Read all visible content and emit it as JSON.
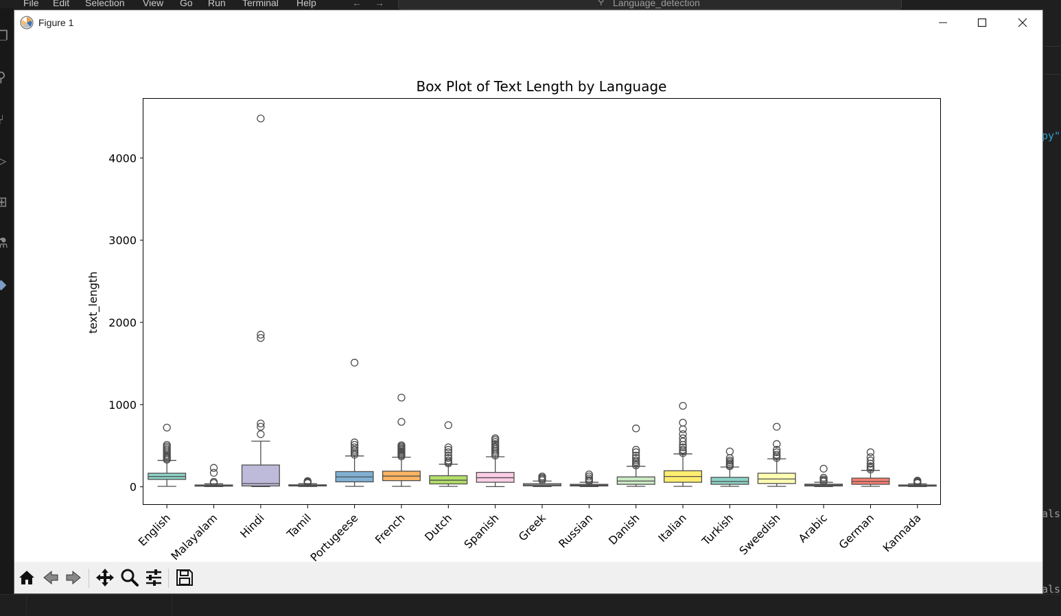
{
  "vscode": {
    "menu": [
      "File",
      "Edit",
      "Selection",
      "View",
      "Go",
      "Run",
      "Terminal",
      "Help"
    ],
    "search_text": "Language_detection",
    "right_fragments": [
      "py\"",
      "als",
      "als"
    ]
  },
  "window": {
    "title": "Figure 1",
    "controls": [
      "minimize-icon",
      "maximize-icon",
      "close-icon"
    ]
  },
  "toolbar": {
    "buttons": [
      "home-icon",
      "back-icon",
      "forward-icon",
      "pan-icon",
      "zoom-icon",
      "configure-subplots-icon",
      "save-icon"
    ]
  },
  "chart_data": {
    "type": "box",
    "title": "Box Plot of Text Length by Language",
    "xlabel": "",
    "ylabel": "text_length",
    "ylim": [
      -220,
      4720
    ],
    "yticks": [
      0,
      1000,
      2000,
      3000,
      4000
    ],
    "grid": false,
    "categories": [
      "English",
      "Malayalam",
      "Hindi",
      "Tamil",
      "Portugeese",
      "French",
      "Dutch",
      "Spanish",
      "Greek",
      "Russian",
      "Danish",
      "Italian",
      "Turkish",
      "Sweedish",
      "Arabic",
      "German",
      "Kannada"
    ],
    "boxes": [
      {
        "category": "English",
        "color": "#8dd3c7",
        "whisker_low": 5,
        "q1": 90,
        "median": 125,
        "q3": 165,
        "whisker_high": 320,
        "outliers": [
          330,
          345,
          360,
          375,
          390,
          410,
          430,
          450,
          470,
          490,
          510,
          720
        ]
      },
      {
        "category": "Malayalam",
        "color": "#ffffb3",
        "whisker_low": 2,
        "q1": 8,
        "median": 14,
        "q3": 22,
        "whisker_high": 36,
        "outliers": [
          45,
          60,
          170,
          230
        ]
      },
      {
        "category": "Hindi",
        "color": "#bebada",
        "whisker_low": 2,
        "q1": 10,
        "median": 40,
        "q3": 265,
        "whisker_high": 555,
        "outliers": [
          640,
          730,
          770,
          1810,
          1850,
          4480
        ]
      },
      {
        "category": "Tamil",
        "color": "#fb8072",
        "whisker_low": 3,
        "q1": 10,
        "median": 16,
        "q3": 24,
        "whisker_high": 38,
        "outliers": [
          45,
          55,
          65,
          70
        ]
      },
      {
        "category": "Portugeese",
        "color": "#80b1d3",
        "whisker_low": 5,
        "q1": 60,
        "median": 120,
        "q3": 185,
        "whisker_high": 375,
        "outliers": [
          390,
          410,
          430,
          450,
          480,
          510,
          540,
          1510
        ]
      },
      {
        "category": "French",
        "color": "#fdb462",
        "whisker_low": 5,
        "q1": 75,
        "median": 130,
        "q3": 190,
        "whisker_high": 360,
        "outliers": [
          370,
          385,
          400,
          415,
          430,
          445,
          460,
          475,
          490,
          505,
          790,
          1085
        ]
      },
      {
        "category": "Dutch",
        "color": "#b3de69",
        "whisker_low": 5,
        "q1": 35,
        "median": 80,
        "q3": 135,
        "whisker_high": 275,
        "outliers": [
          285,
          300,
          320,
          350,
          380,
          420,
          450,
          480,
          750
        ]
      },
      {
        "category": "Spanish",
        "color": "#fccde5",
        "whisker_low": 2,
        "q1": 55,
        "median": 110,
        "q3": 175,
        "whisker_high": 365,
        "outliers": [
          380,
          400,
          420,
          440,
          460,
          480,
          500,
          520,
          545,
          570,
          590
        ]
      },
      {
        "category": "Greek",
        "color": "#d9d9d9",
        "whisker_low": 2,
        "q1": 12,
        "median": 22,
        "q3": 38,
        "whisker_high": 70,
        "outliers": [
          80,
          95,
          110,
          125
        ]
      },
      {
        "category": "Russian",
        "color": "#bc80bd",
        "whisker_low": 2,
        "q1": 10,
        "median": 18,
        "q3": 30,
        "whisker_high": 55,
        "outliers": [
          65,
          80,
          100,
          125,
          150
        ]
      },
      {
        "category": "Danish",
        "color": "#ccebc5",
        "whisker_low": 5,
        "q1": 30,
        "median": 70,
        "q3": 120,
        "whisker_high": 250,
        "outliers": [
          260,
          280,
          300,
          320,
          350,
          380,
          420,
          450,
          710
        ]
      },
      {
        "category": "Italian",
        "color": "#ffed6f",
        "whisker_low": 5,
        "q1": 55,
        "median": 125,
        "q3": 195,
        "whisker_high": 400,
        "outliers": [
          410,
          430,
          450,
          480,
          510,
          550,
          590,
          640,
          700,
          780,
          985
        ]
      },
      {
        "category": "Turkish",
        "color": "#8dd3c7",
        "whisker_low": 5,
        "q1": 30,
        "median": 65,
        "q3": 115,
        "whisker_high": 240,
        "outliers": [
          250,
          265,
          280,
          300,
          320,
          350,
          430
        ]
      },
      {
        "category": "Sweedish",
        "color": "#ffffb3",
        "whisker_low": 5,
        "q1": 40,
        "median": 95,
        "q3": 165,
        "whisker_high": 340,
        "outliers": [
          350,
          370,
          390,
          420,
          450,
          520,
          730
        ]
      },
      {
        "category": "Arabic",
        "color": "#bebada",
        "whisker_low": 2,
        "q1": 10,
        "median": 20,
        "q3": 32,
        "whisker_high": 55,
        "outliers": [
          65,
          75,
          90,
          110,
          220
        ]
      },
      {
        "category": "German",
        "color": "#fb8072",
        "whisker_low": 5,
        "q1": 30,
        "median": 65,
        "q3": 105,
        "whisker_high": 200,
        "outliers": [
          210,
          230,
          250,
          280,
          320,
          360,
          420
        ]
      },
      {
        "category": "Kannada",
        "color": "#80b1d3",
        "whisker_low": 2,
        "q1": 8,
        "median": 14,
        "q3": 22,
        "whisker_high": 35,
        "outliers": [
          45,
          55,
          65,
          75
        ]
      }
    ]
  }
}
